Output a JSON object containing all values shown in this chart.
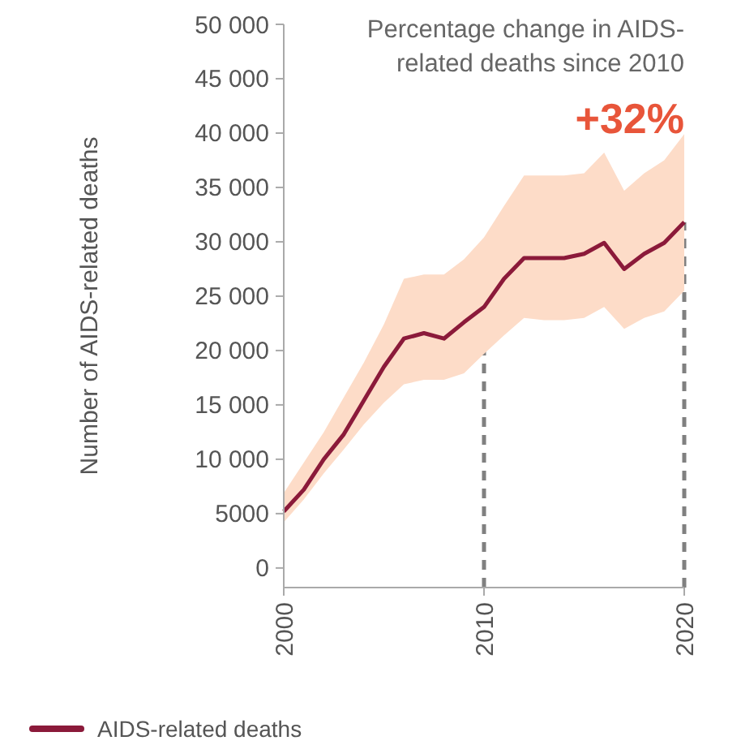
{
  "chart_data": {
    "type": "line",
    "ylabel": "Number of AIDS-related deaths",
    "x": [
      2000,
      2001,
      2002,
      2003,
      2004,
      2005,
      2006,
      2007,
      2008,
      2009,
      2010,
      2011,
      2012,
      2013,
      2014,
      2015,
      2016,
      2017,
      2018,
      2019,
      2020
    ],
    "series": [
      {
        "name": "AIDS-related deaths",
        "color": "#8b1a3a",
        "values": [
          5200,
          7200,
          10000,
          12300,
          15400,
          18500,
          21100,
          21600,
          21100,
          22600,
          24000,
          26600,
          28500,
          28500,
          28500,
          28900,
          29900,
          27500,
          28900,
          29900,
          31800
        ],
        "lower": [
          4200,
          6300,
          8700,
          10900,
          13200,
          15200,
          16900,
          17300,
          17300,
          17900,
          19700,
          21400,
          23000,
          22800,
          22800,
          23000,
          24000,
          22000,
          23000,
          23600,
          25500
        ],
        "upper": [
          6900,
          9700,
          12500,
          15700,
          18900,
          22400,
          26600,
          27000,
          27000,
          28400,
          30400,
          33300,
          36100,
          36100,
          36100,
          36300,
          38200,
          34700,
          36300,
          37500,
          39900
        ]
      }
    ],
    "xlim": [
      2000,
      2020
    ],
    "xticks": [
      2000,
      2010,
      2020
    ],
    "ylim": [
      -1800,
      50000
    ],
    "yticks": [
      0,
      5000,
      {
        "value": 10000,
        "label": "10 000"
      },
      {
        "value": 15000,
        "label": "15 000"
      },
      {
        "value": 20000,
        "label": "20 000"
      },
      {
        "value": 25000,
        "label": "25 000"
      },
      {
        "value": 30000,
        "label": "30 000"
      },
      {
        "value": 35000,
        "label": "35 000"
      },
      {
        "value": 40000,
        "label": "40 000"
      },
      {
        "value": 45000,
        "label": "45 000"
      },
      {
        "value": 50000,
        "label": "50 000"
      }
    ],
    "ref_lines": [
      {
        "axis": "x",
        "value": 2010,
        "label": null,
        "color": "#808080",
        "line_style": "dashed"
      },
      {
        "axis": "x",
        "value": 2020,
        "label": null,
        "color": "#808080",
        "line_style": "dashed"
      }
    ],
    "annotations": [
      "Percentage change in AIDS-related deaths since 2010",
      "+32%"
    ],
    "grid": false,
    "legend": "bottom left",
    "marker": "none",
    "line_style": "solid"
  }
}
